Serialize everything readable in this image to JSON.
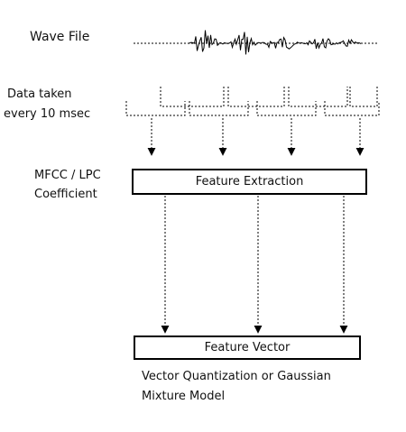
{
  "labels": {
    "wave_file": "Wave File",
    "data_taken_line1": "Data taken",
    "data_taken_line2": "every 10 msec",
    "coef_line1": "MFCC / LPC",
    "coef_line2": "Coefficient",
    "vq_line1": "Vector Quantization or Gaussian",
    "vq_line2": "Mixture Model"
  },
  "boxes": {
    "feature_extraction": "Feature Extraction",
    "feature_vector": "Feature Vector"
  },
  "colors": {
    "stroke": "#000000",
    "background": "#ffffff"
  }
}
